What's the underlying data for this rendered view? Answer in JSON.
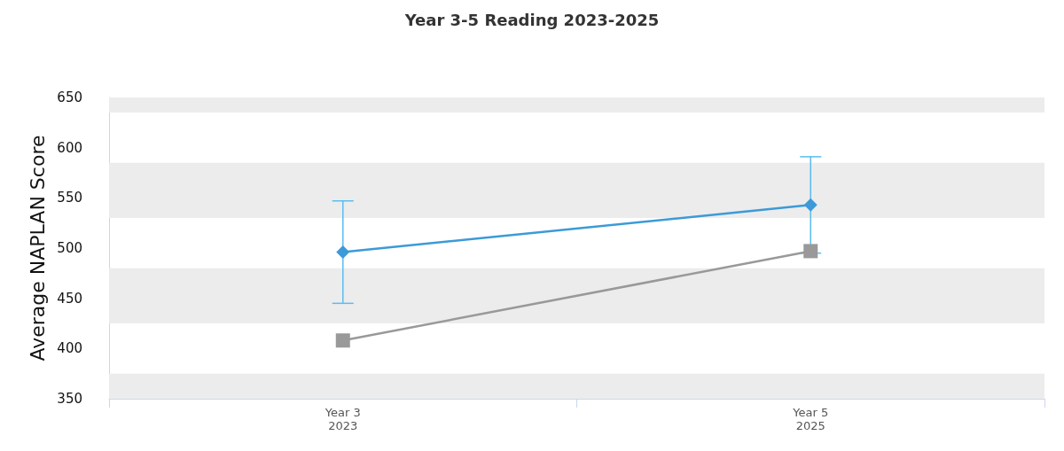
{
  "chart_data": {
    "type": "line",
    "title": "Year 3-5 Reading 2023-2025",
    "ylabel": "Average NAPLAN Score",
    "categories": [
      "Year 3\n2023",
      "Year 5\n2025"
    ],
    "series": [
      {
        "color": "#3c9ad8",
        "values": [
          496,
          543
        ],
        "errors": [
          51,
          48
        ],
        "marker": "diamond"
      },
      {
        "color": "#999999",
        "values": [
          408,
          497
        ],
        "marker": "square"
      }
    ],
    "ylim": [
      350,
      650
    ],
    "yticks": [
      350,
      400,
      450,
      500,
      550,
      600,
      650
    ],
    "bands": [
      {
        "axis": "y",
        "from": 635,
        "to": 650,
        "color": "#ececec"
      },
      {
        "axis": "y",
        "from": 530,
        "to": 585,
        "color": "#ececec"
      },
      {
        "axis": "y",
        "from": 425,
        "to": 480,
        "color": "#ececec"
      },
      {
        "axis": "y",
        "from": 350,
        "to": 375,
        "color": "#ececec"
      }
    ]
  }
}
